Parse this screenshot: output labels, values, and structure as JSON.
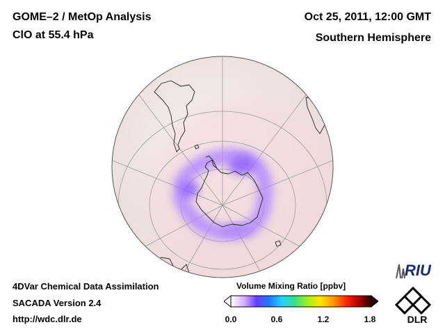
{
  "header": {
    "left_line1": "GOME–2 / MetOp Analysis",
    "left_line2": "ClO at 55.4 hPa",
    "right_line1": "Oct 25, 2011, 12:00 GMT",
    "right_line2": "Southern Hemisphere"
  },
  "footer": {
    "line1": "4DVar Chemical Data Assimilation",
    "line2": "SACADA Version 2.4",
    "line3": "http://wdc.dlr.de"
  },
  "colorbar": {
    "title": "Volume Mixing Ratio [ppbv]",
    "ticks": [
      "0.0",
      "0.6",
      "1.2",
      "1.8"
    ],
    "range": [
      0.0,
      1.8
    ],
    "colors": [
      "#ffffff",
      "#d6b3ff",
      "#6a3dff",
      "#1e7bff",
      "#22d4ff",
      "#33e08a",
      "#a4ef1c",
      "#ffe600",
      "#ff9a00",
      "#ff2a00",
      "#b00000",
      "#2a0000"
    ]
  },
  "logos": {
    "riu": "RIU",
    "dlr": "DLR"
  },
  "map": {
    "projection": "orthographic",
    "hemisphere": "south",
    "background_color": "#f1e6e4",
    "clo_color": "#a07cff"
  }
}
